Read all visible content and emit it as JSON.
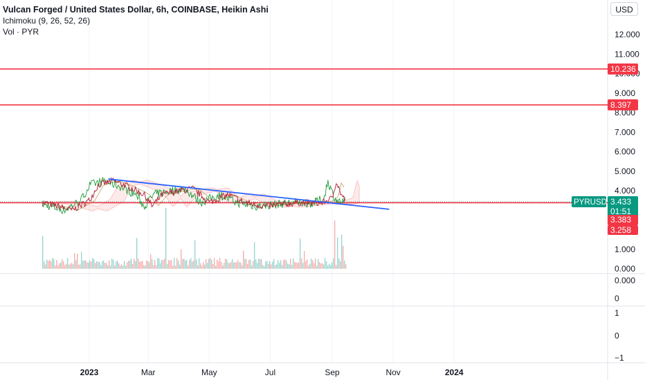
{
  "header": {
    "title": "Vulcan Forged / United States Dollar, 6h, COINBASE, Heikin Ashi",
    "indicator_1": "Ichimoku (9, 26, 52, 26)",
    "indicator_2": "Vol · PYR",
    "currency_button": "USD"
  },
  "colors": {
    "up": "#26a69a",
    "down": "#ef5350",
    "hline": "#f23645",
    "trendline": "#2962ff",
    "price_tag": "#089981",
    "grid": "#e0e3eb",
    "text": "#131722"
  },
  "chart_data": {
    "type": "candlestick",
    "title": "Vulcan Forged / United States Dollar, 6h, COINBASE, Heikin Ashi",
    "symbol": "PYRUSD",
    "x_tick_labels": [
      "2023",
      "Mar",
      "May",
      "Jul",
      "Sep",
      "Nov",
      "2024"
    ],
    "price_axis": {
      "ticks": [
        "12.000",
        "11.000",
        "10.000",
        "9.000",
        "8.000",
        "7.000",
        "6.000",
        "5.000",
        "4.000",
        "3.000",
        "2.000",
        "1.000",
        "0.000"
      ],
      "ylim": [
        0,
        13
      ]
    },
    "pane2_axis": {
      "ticks": [
        "0.000",
        "0"
      ]
    },
    "pane3_axis": {
      "ticks": [
        "1",
        "0",
        "−1"
      ]
    },
    "horizontal_levels": [
      {
        "value": 10.236,
        "label": "10.236"
      },
      {
        "value": 8.397,
        "label": "8.397"
      },
      {
        "value": 3.383,
        "label": "3.383"
      }
    ],
    "trendline": {
      "start": {
        "date": "2023-01-20",
        "price": 4.6
      },
      "end": {
        "date": "2023-10-28",
        "price": 3.05
      }
    },
    "price_tags": [
      {
        "label": "PYRUSD",
        "value": "3.433",
        "countdown": "01:51"
      },
      {
        "label": "",
        "value": "3.383"
      },
      {
        "label": "",
        "value": "3.258"
      }
    ],
    "series": [
      {
        "date": "2022-11-15",
        "price": 3.4
      },
      {
        "date": "2022-12-01",
        "price": 3.2
      },
      {
        "date": "2022-12-15",
        "price": 3.0
      },
      {
        "date": "2023-01-01",
        "price": 3.5
      },
      {
        "date": "2023-01-10",
        "price": 4.3
      },
      {
        "date": "2023-01-25",
        "price": 4.5
      },
      {
        "date": "2023-02-10",
        "price": 4.2
      },
      {
        "date": "2023-02-25",
        "price": 3.8
      },
      {
        "date": "2023-03-05",
        "price": 3.2
      },
      {
        "date": "2023-03-15",
        "price": 3.8
      },
      {
        "date": "2023-04-01",
        "price": 4.0
      },
      {
        "date": "2023-04-15",
        "price": 4.1
      },
      {
        "date": "2023-05-01",
        "price": 3.4
      },
      {
        "date": "2023-05-20",
        "price": 3.8
      },
      {
        "date": "2023-06-05",
        "price": 3.4
      },
      {
        "date": "2023-06-25",
        "price": 3.2
      },
      {
        "date": "2023-07-15",
        "price": 3.3
      },
      {
        "date": "2023-08-01",
        "price": 3.4
      },
      {
        "date": "2023-08-20",
        "price": 3.35
      },
      {
        "date": "2023-09-01",
        "price": 3.6
      },
      {
        "date": "2023-09-05",
        "price": 4.5
      },
      {
        "date": "2023-09-10",
        "price": 3.8
      },
      {
        "date": "2023-09-15",
        "price": 3.43
      }
    ]
  }
}
